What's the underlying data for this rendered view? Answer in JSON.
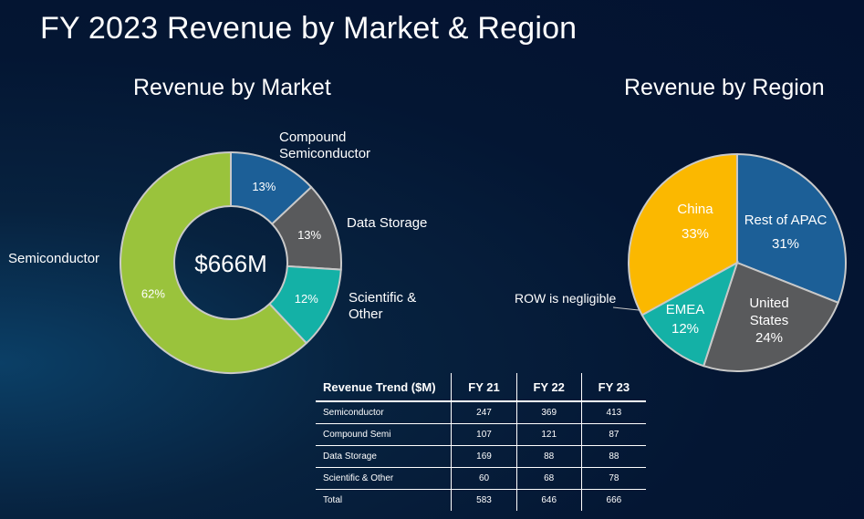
{
  "title": "FY 2023 Revenue by Market & Region",
  "chart_data": [
    {
      "type": "pie",
      "variant": "donut",
      "title": "Revenue by Market",
      "center_label": "$666M",
      "slices": [
        {
          "key": "semiconductor",
          "label_lines": [
            "Semiconductor"
          ],
          "value": 62,
          "value_label": "62%",
          "color": "#9ac33c"
        },
        {
          "key": "compound",
          "label_lines": [
            "Compound",
            "Semiconductor"
          ],
          "value": 13,
          "value_label": "13%",
          "color": "#1c5f97"
        },
        {
          "key": "data-storage",
          "label_lines": [
            "Data Storage"
          ],
          "value": 13,
          "value_label": "13%",
          "color": "#595a5c"
        },
        {
          "key": "scientific",
          "label_lines": [
            "Scientific &",
            "Other"
          ],
          "value": 12,
          "value_label": "12%",
          "color": "#14b1a6"
        }
      ]
    },
    {
      "type": "pie",
      "title": "Revenue by Region",
      "slices": [
        {
          "key": "rest-of-apac",
          "label_lines": [
            "Rest of APAC"
          ],
          "value": 31,
          "value_label": "31%",
          "color": "#1c5f97"
        },
        {
          "key": "united-states",
          "label_lines": [
            "United",
            "States"
          ],
          "value": 24,
          "value_label": "24%",
          "color": "#595a5c"
        },
        {
          "key": "emea",
          "label_lines": [
            "EMEA"
          ],
          "value": 12,
          "value_label": "12%",
          "color": "#14b1a6"
        },
        {
          "key": "china",
          "label_lines": [
            "China"
          ],
          "value": 33,
          "value_label": "33%",
          "color": "#fbb800"
        }
      ],
      "annotation": "ROW is negligible"
    },
    {
      "type": "table",
      "headers": [
        "Revenue Trend ($M)",
        "FY 21",
        "FY 22",
        "FY 23"
      ],
      "rows": [
        [
          "Semiconductor",
          "247",
          "369",
          "413"
        ],
        [
          "Compound Semi",
          "107",
          "121",
          "87"
        ],
        [
          "Data Storage",
          "169",
          "88",
          "88"
        ],
        [
          "Scientific & Other",
          "60",
          "68",
          "78"
        ],
        [
          "Total",
          "583",
          "646",
          "666"
        ]
      ]
    }
  ]
}
